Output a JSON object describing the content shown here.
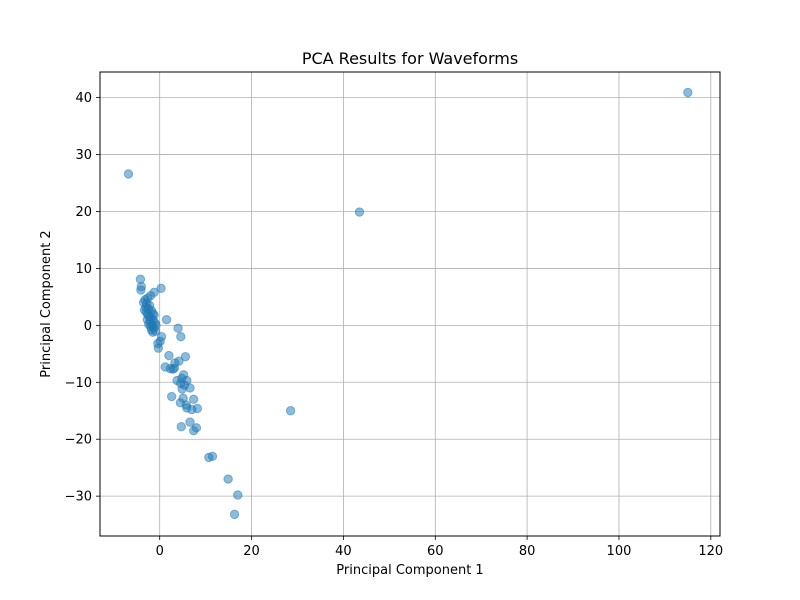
{
  "chart_data": {
    "type": "scatter",
    "title": "PCA Results for Waveforms",
    "xlabel": "Principal Component 1",
    "ylabel": "Principal Component 2",
    "xlim": [
      -13,
      122
    ],
    "ylim": [
      -37,
      44.5
    ],
    "xticks": [
      0,
      20,
      40,
      60,
      80,
      100,
      120
    ],
    "yticks": [
      -30,
      -20,
      -10,
      0,
      10,
      20,
      30,
      40
    ],
    "grid": true,
    "marker_color": "#1f77b4",
    "marker_alpha": 0.5,
    "points": [
      [
        -6.8,
        26.6
      ],
      [
        115.0,
        40.9
      ],
      [
        43.5,
        19.9
      ],
      [
        28.5,
        -15.0
      ],
      [
        -4.2,
        8.1
      ],
      [
        -4.0,
        6.8
      ],
      [
        -4.1,
        6.2
      ],
      [
        0.3,
        6.5
      ],
      [
        -1.2,
        5.8
      ],
      [
        -2.0,
        5.2
      ],
      [
        -2.6,
        4.8
      ],
      [
        -3.2,
        4.5
      ],
      [
        -3.5,
        4.0
      ],
      [
        -2.8,
        3.8
      ],
      [
        -2.2,
        3.5
      ],
      [
        -3.0,
        3.2
      ],
      [
        -2.5,
        2.9
      ],
      [
        -3.3,
        2.7
      ],
      [
        -1.8,
        2.6
      ],
      [
        -2.9,
        2.3
      ],
      [
        -1.5,
        2.1
      ],
      [
        -2.6,
        1.9
      ],
      [
        -1.2,
        1.8
      ],
      [
        -2.3,
        1.5
      ],
      [
        -1.9,
        1.3
      ],
      [
        -2.7,
        1.0
      ],
      [
        -1.4,
        0.9
      ],
      [
        -2.1,
        0.6
      ],
      [
        -1.0,
        0.4
      ],
      [
        -2.4,
        0.2
      ],
      [
        -1.6,
        0.0
      ],
      [
        -0.8,
        0.0
      ],
      [
        -2.0,
        -0.2
      ],
      [
        -1.3,
        -0.5
      ],
      [
        -1.8,
        -0.8
      ],
      [
        -0.9,
        -1.0
      ],
      [
        -1.5,
        -1.2
      ],
      [
        0.4,
        -2.0
      ],
      [
        0.1,
        -2.8
      ],
      [
        -0.4,
        -3.2
      ],
      [
        -0.3,
        -4.0
      ],
      [
        1.5,
        1.0
      ],
      [
        4.0,
        -0.5
      ],
      [
        4.6,
        -2.0
      ],
      [
        2.0,
        -5.3
      ],
      [
        5.6,
        -5.5
      ],
      [
        4.2,
        -6.3
      ],
      [
        3.3,
        -6.6
      ],
      [
        1.2,
        -7.3
      ],
      [
        2.3,
        -7.6
      ],
      [
        2.9,
        -7.7
      ],
      [
        3.2,
        -7.5
      ],
      [
        5.2,
        -8.7
      ],
      [
        4.8,
        -9.3
      ],
      [
        3.8,
        -9.7
      ],
      [
        5.9,
        -9.7
      ],
      [
        4.6,
        -10.2
      ],
      [
        5.4,
        -10.5
      ],
      [
        6.6,
        -11.0
      ],
      [
        4.9,
        -11.2
      ],
      [
        2.6,
        -12.5
      ],
      [
        5.1,
        -12.8
      ],
      [
        7.4,
        -13.0
      ],
      [
        4.5,
        -13.6
      ],
      [
        5.8,
        -14.0
      ],
      [
        5.9,
        -14.5
      ],
      [
        7.0,
        -14.8
      ],
      [
        8.2,
        -14.6
      ],
      [
        6.6,
        -17.0
      ],
      [
        4.7,
        -17.8
      ],
      [
        8.0,
        -18.0
      ],
      [
        7.4,
        -18.5
      ],
      [
        10.7,
        -23.2
      ],
      [
        11.5,
        -23.0
      ],
      [
        14.9,
        -27.0
      ],
      [
        17.0,
        -29.8
      ],
      [
        16.3,
        -33.2
      ]
    ]
  }
}
